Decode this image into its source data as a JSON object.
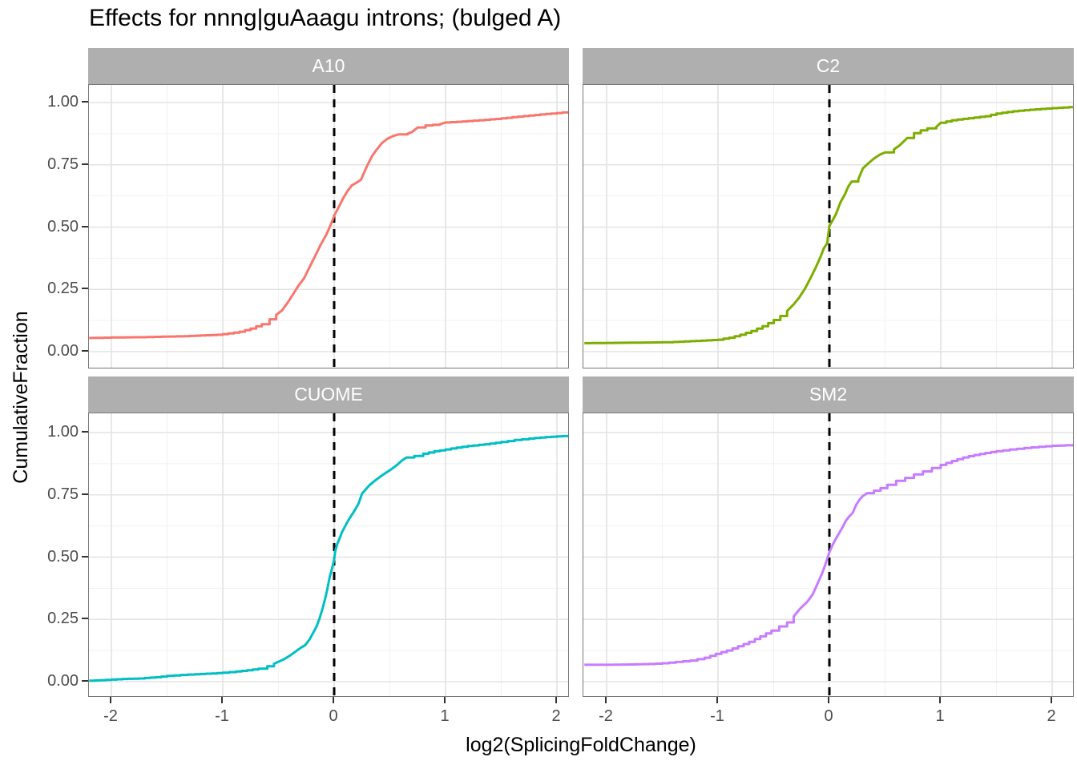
{
  "title": "Effects for nnng|guAaagu introns; (bulged A)",
  "style": {
    "strip_bg": "#afafaf",
    "strip_text": "#ffffff",
    "grid_major": "#e3e3e3",
    "grid_minor": "#f1f1f1",
    "panel_border": "#777777",
    "tick_color": "#333333",
    "tick_label_color": "#4d4d4d",
    "vline_color": "#000000"
  },
  "chart_data": {
    "type": "line",
    "subtype": "ecdf-step",
    "title": "Effects for nnng|guAaagu introns; (bulged A)",
    "xlabel": "log2(SplicingFoldChange)",
    "ylabel": "CumulativeFraction",
    "xlim": [
      -2.2,
      2.2
    ],
    "ylim": [
      -0.07,
      1.07
    ],
    "grid": true,
    "legend": false,
    "x_ticks": {
      "values": [
        -2,
        -1,
        0,
        1,
        2
      ],
      "labels": [
        "-2",
        "-1",
        "0",
        "1",
        "2"
      ]
    },
    "x_minor": [
      -1.5,
      -0.5,
      0.5,
      1.5
    ],
    "y_ticks": {
      "values": [
        0,
        0.25,
        0.5,
        0.75,
        1
      ],
      "labels": [
        "0.00",
        "0.25",
        "0.50",
        "0.75",
        "1.00"
      ]
    },
    "y_minor": [
      0.125,
      0.375,
      0.625,
      0.875
    ],
    "vline": {
      "x": 0,
      "style": "dashed",
      "color": "#000000"
    },
    "facets": [
      {
        "label": "A10",
        "color": "#F8766D",
        "points": [
          [
            -2.2,
            0.055
          ],
          [
            -2.0,
            0.057
          ],
          [
            -1.75,
            0.058
          ],
          [
            -1.55,
            0.06
          ],
          [
            -1.35,
            0.062
          ],
          [
            -1.2,
            0.065
          ],
          [
            -1.05,
            0.068
          ],
          [
            -0.95,
            0.073
          ],
          [
            -0.85,
            0.08
          ],
          [
            -0.75,
            0.093
          ],
          [
            -0.65,
            0.11
          ],
          [
            -0.58,
            0.13
          ],
          [
            -0.52,
            0.148
          ],
          [
            -0.47,
            0.165
          ],
          [
            -0.42,
            0.195
          ],
          [
            -0.37,
            0.23
          ],
          [
            -0.32,
            0.265
          ],
          [
            -0.27,
            0.295
          ],
          [
            -0.22,
            0.34
          ],
          [
            -0.17,
            0.385
          ],
          [
            -0.12,
            0.43
          ],
          [
            -0.07,
            0.47
          ],
          [
            -0.03,
            0.51
          ],
          [
            0,
            0.545
          ],
          [
            0.04,
            0.58
          ],
          [
            0.08,
            0.615
          ],
          [
            0.12,
            0.645
          ],
          [
            0.16,
            0.668
          ],
          [
            0.2,
            0.678
          ],
          [
            0.24,
            0.69
          ],
          [
            0.27,
            0.72
          ],
          [
            0.3,
            0.75
          ],
          [
            0.34,
            0.785
          ],
          [
            0.38,
            0.81
          ],
          [
            0.43,
            0.838
          ],
          [
            0.48,
            0.855
          ],
          [
            0.53,
            0.866
          ],
          [
            0.58,
            0.872
          ],
          [
            0.66,
            0.875
          ],
          [
            0.7,
            0.882
          ],
          [
            0.75,
            0.9
          ],
          [
            0.82,
            0.908
          ],
          [
            0.95,
            0.913
          ],
          [
            1.0,
            0.92
          ],
          [
            1.15,
            0.924
          ],
          [
            1.3,
            0.929
          ],
          [
            1.45,
            0.934
          ],
          [
            1.6,
            0.941
          ],
          [
            1.75,
            0.948
          ],
          [
            1.9,
            0.954
          ],
          [
            2.05,
            0.96
          ],
          [
            2.2,
            0.963
          ]
        ]
      },
      {
        "label": "C2",
        "color": "#7CAE00",
        "points": [
          [
            -2.2,
            0.034
          ],
          [
            -2.0,
            0.035
          ],
          [
            -1.8,
            0.036
          ],
          [
            -1.6,
            0.037
          ],
          [
            -1.45,
            0.038
          ],
          [
            -1.3,
            0.041
          ],
          [
            -1.15,
            0.044
          ],
          [
            -1.0,
            0.048
          ],
          [
            -0.9,
            0.056
          ],
          [
            -0.8,
            0.068
          ],
          [
            -0.7,
            0.083
          ],
          [
            -0.6,
            0.102
          ],
          [
            -0.5,
            0.127
          ],
          [
            -0.44,
            0.143
          ],
          [
            -0.38,
            0.163
          ],
          [
            -0.32,
            0.19
          ],
          [
            -0.27,
            0.218
          ],
          [
            -0.22,
            0.252
          ],
          [
            -0.17,
            0.295
          ],
          [
            -0.12,
            0.34
          ],
          [
            -0.08,
            0.38
          ],
          [
            -0.05,
            0.415
          ],
          [
            -0.02,
            0.435
          ],
          [
            0,
            0.505
          ],
          [
            0.03,
            0.528
          ],
          [
            0.06,
            0.553
          ],
          [
            0.1,
            0.6
          ],
          [
            0.14,
            0.632
          ],
          [
            0.17,
            0.663
          ],
          [
            0.2,
            0.683
          ],
          [
            0.26,
            0.692
          ],
          [
            0.3,
            0.735
          ],
          [
            0.35,
            0.756
          ],
          [
            0.4,
            0.775
          ],
          [
            0.45,
            0.79
          ],
          [
            0.5,
            0.8
          ],
          [
            0.58,
            0.812
          ],
          [
            0.63,
            0.828
          ],
          [
            0.7,
            0.858
          ],
          [
            0.76,
            0.877
          ],
          [
            0.82,
            0.888
          ],
          [
            0.88,
            0.896
          ],
          [
            0.96,
            0.902
          ],
          [
            1.0,
            0.919
          ],
          [
            1.1,
            0.929
          ],
          [
            1.25,
            0.937
          ],
          [
            1.4,
            0.945
          ],
          [
            1.5,
            0.956
          ],
          [
            1.65,
            0.965
          ],
          [
            1.8,
            0.971
          ],
          [
            1.95,
            0.976
          ],
          [
            2.1,
            0.98
          ],
          [
            2.25,
            0.984
          ]
        ]
      },
      {
        "label": "CUOME",
        "color": "#00BFC4",
        "points": [
          [
            -2.2,
            0.004
          ],
          [
            -2.05,
            0.007
          ],
          [
            -1.9,
            0.011
          ],
          [
            -1.75,
            0.013
          ],
          [
            -1.6,
            0.018
          ],
          [
            -1.5,
            0.023
          ],
          [
            -1.38,
            0.027
          ],
          [
            -1.25,
            0.03
          ],
          [
            -1.1,
            0.033
          ],
          [
            -1.0,
            0.036
          ],
          [
            -0.88,
            0.041
          ],
          [
            -0.78,
            0.046
          ],
          [
            -0.68,
            0.052
          ],
          [
            -0.6,
            0.062
          ],
          [
            -0.54,
            0.072
          ],
          [
            -0.5,
            0.08
          ],
          [
            -0.45,
            0.09
          ],
          [
            -0.4,
            0.104
          ],
          [
            -0.35,
            0.12
          ],
          [
            -0.3,
            0.136
          ],
          [
            -0.26,
            0.147
          ],
          [
            -0.22,
            0.17
          ],
          [
            -0.19,
            0.195
          ],
          [
            -0.16,
            0.22
          ],
          [
            -0.13,
            0.255
          ],
          [
            -0.1,
            0.3
          ],
          [
            -0.08,
            0.335
          ],
          [
            -0.06,
            0.375
          ],
          [
            -0.04,
            0.42
          ],
          [
            -0.02,
            0.452
          ],
          [
            0,
            0.49
          ],
          [
            0.01,
            0.525
          ],
          [
            0.03,
            0.556
          ],
          [
            0.05,
            0.576
          ],
          [
            0.07,
            0.6
          ],
          [
            0.1,
            0.625
          ],
          [
            0.13,
            0.65
          ],
          [
            0.16,
            0.67
          ],
          [
            0.19,
            0.692
          ],
          [
            0.22,
            0.716
          ],
          [
            0.25,
            0.755
          ],
          [
            0.28,
            0.77
          ],
          [
            0.32,
            0.79
          ],
          [
            0.37,
            0.808
          ],
          [
            0.42,
            0.825
          ],
          [
            0.47,
            0.84
          ],
          [
            0.52,
            0.855
          ],
          [
            0.57,
            0.872
          ],
          [
            0.61,
            0.888
          ],
          [
            0.65,
            0.9
          ],
          [
            0.72,
            0.906
          ],
          [
            0.8,
            0.915
          ],
          [
            0.9,
            0.925
          ],
          [
            1.0,
            0.932
          ],
          [
            1.1,
            0.94
          ],
          [
            1.2,
            0.946
          ],
          [
            1.35,
            0.953
          ],
          [
            1.5,
            0.962
          ],
          [
            1.62,
            0.97
          ],
          [
            1.75,
            0.976
          ],
          [
            1.9,
            0.982
          ],
          [
            2.05,
            0.986
          ],
          [
            2.2,
            0.988
          ]
        ]
      },
      {
        "label": "SM2",
        "color": "#C77CFF",
        "points": [
          [
            -2.2,
            0.068
          ],
          [
            -2.0,
            0.068
          ],
          [
            -1.8,
            0.069
          ],
          [
            -1.62,
            0.071
          ],
          [
            -1.5,
            0.074
          ],
          [
            -1.38,
            0.079
          ],
          [
            -1.25,
            0.085
          ],
          [
            -1.12,
            0.096
          ],
          [
            -1.02,
            0.112
          ],
          [
            -0.92,
            0.125
          ],
          [
            -0.82,
            0.142
          ],
          [
            -0.72,
            0.16
          ],
          [
            -0.62,
            0.182
          ],
          [
            -0.52,
            0.205
          ],
          [
            -0.45,
            0.222
          ],
          [
            -0.38,
            0.238
          ],
          [
            -0.32,
            0.262
          ],
          [
            -0.26,
            0.295
          ],
          [
            -0.2,
            0.32
          ],
          [
            -0.15,
            0.35
          ],
          [
            -0.11,
            0.39
          ],
          [
            -0.07,
            0.43
          ],
          [
            -0.04,
            0.465
          ],
          [
            0,
            0.52
          ],
          [
            0.03,
            0.55
          ],
          [
            0.06,
            0.575
          ],
          [
            0.09,
            0.598
          ],
          [
            0.12,
            0.622
          ],
          [
            0.15,
            0.648
          ],
          [
            0.18,
            0.664
          ],
          [
            0.21,
            0.678
          ],
          [
            0.24,
            0.71
          ],
          [
            0.27,
            0.73
          ],
          [
            0.3,
            0.745
          ],
          [
            0.34,
            0.757
          ],
          [
            0.4,
            0.767
          ],
          [
            0.46,
            0.777
          ],
          [
            0.52,
            0.79
          ],
          [
            0.6,
            0.806
          ],
          [
            0.68,
            0.818
          ],
          [
            0.76,
            0.832
          ],
          [
            0.84,
            0.844
          ],
          [
            0.92,
            0.858
          ],
          [
            1.0,
            0.87
          ],
          [
            1.1,
            0.886
          ],
          [
            1.2,
            0.9
          ],
          [
            1.3,
            0.91
          ],
          [
            1.4,
            0.918
          ],
          [
            1.5,
            0.925
          ],
          [
            1.62,
            0.932
          ],
          [
            1.75,
            0.938
          ],
          [
            1.88,
            0.943
          ],
          [
            2.0,
            0.947
          ],
          [
            2.12,
            0.949
          ],
          [
            2.25,
            0.951
          ]
        ]
      }
    ]
  }
}
